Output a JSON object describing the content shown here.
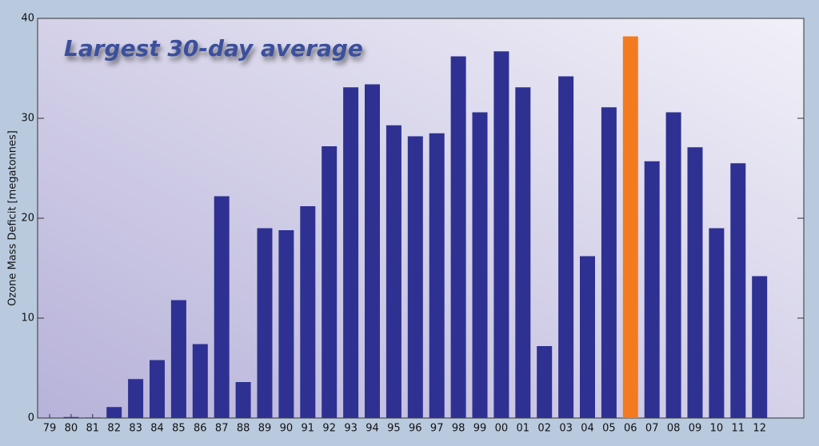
{
  "chart_data": {
    "type": "bar",
    "title": "Largest 30-day average",
    "y_label": "Ozone Mass Deficit [megatonnes]",
    "categories": [
      "79",
      "80",
      "81",
      "82",
      "83",
      "84",
      "85",
      "86",
      "87",
      "88",
      "89",
      "90",
      "91",
      "92",
      "93",
      "94",
      "95",
      "96",
      "97",
      "98",
      "99",
      "00",
      "01",
      "02",
      "03",
      "04",
      "05",
      "06",
      "07",
      "08",
      "09",
      "10",
      "11",
      "12"
    ],
    "values": [
      0,
      0.1,
      0.05,
      1.1,
      3.9,
      5.8,
      11.8,
      7.4,
      22.2,
      3.6,
      19.0,
      18.8,
      21.2,
      27.2,
      33.1,
      33.4,
      29.3,
      28.2,
      28.5,
      36.2,
      30.6,
      36.7,
      33.1,
      7.2,
      34.2,
      16.2,
      31.1,
      38.2,
      25.7,
      30.6,
      27.1,
      19.0,
      25.5,
      14.2
    ],
    "colors": [
      "#2e3192",
      "#2e3192",
      "#2e3192",
      "#2e3192",
      "#2e3192",
      "#2e3192",
      "#2e3192",
      "#2e3192",
      "#2e3192",
      "#2e3192",
      "#2e3192",
      "#2e3192",
      "#2e3192",
      "#2e3192",
      "#2e3192",
      "#2e3192",
      "#2e3192",
      "#2e3192",
      "#2e3192",
      "#2e3192",
      "#2e3192",
      "#2e3192",
      "#2e3192",
      "#2e3192",
      "#2e3192",
      "#2e3192",
      "#2e3192",
      "#f47a20",
      "#2e3192",
      "#2e3192",
      "#2e3192",
      "#2e3192",
      "#2e3192",
      "#2e3192"
    ],
    "ylim": [
      0,
      40
    ],
    "yticks": [
      0,
      10,
      20,
      30,
      40
    ]
  }
}
